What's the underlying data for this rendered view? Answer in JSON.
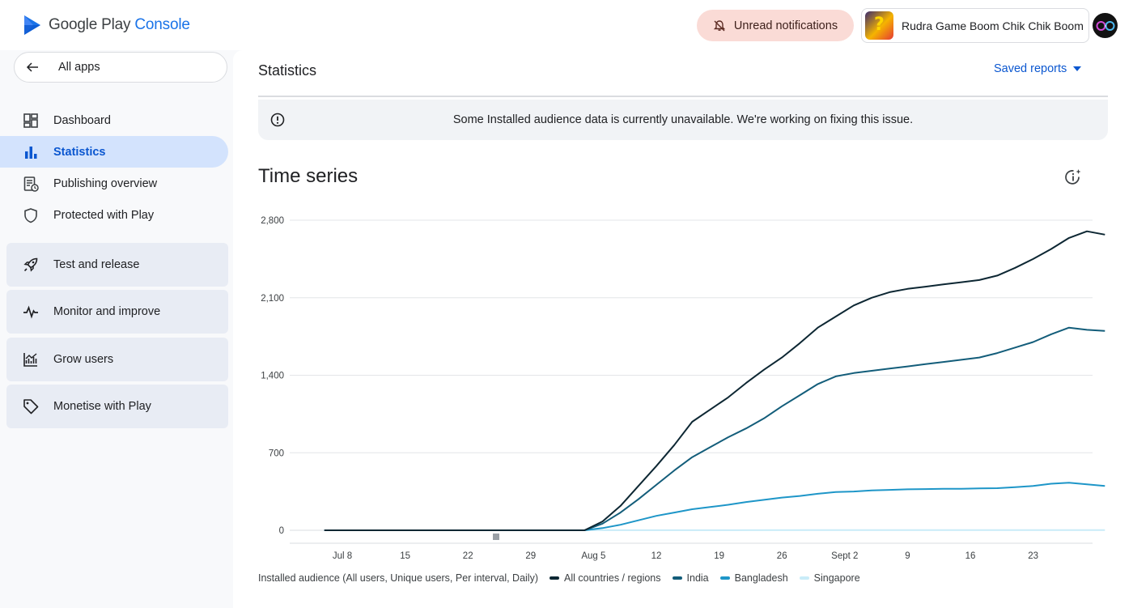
{
  "header": {
    "logo_text_a": "Google Play",
    "logo_text_b": "Console",
    "notifications_label": "Unread notifications",
    "app_name": "Rudra Game Boom Chik Chik Boom"
  },
  "sidebar": {
    "all_apps_label": "All apps",
    "items": [
      {
        "label": "Dashboard",
        "icon": "dashboard-icon",
        "active": false
      },
      {
        "label": "Statistics",
        "icon": "bar-chart-icon",
        "active": true
      },
      {
        "label": "Publishing overview",
        "icon": "publishing-icon",
        "active": false
      },
      {
        "label": "Protected with Play",
        "icon": "shield-icon",
        "active": false
      }
    ],
    "groups": [
      {
        "label": "Test and release",
        "icon": "rocket-icon"
      },
      {
        "label": "Monitor and improve",
        "icon": "pulse-icon"
      },
      {
        "label": "Grow users",
        "icon": "growth-chart-icon"
      },
      {
        "label": "Monetise with Play",
        "icon": "tag-icon"
      }
    ]
  },
  "main": {
    "title": "Statistics",
    "saved_reports_label": "Saved reports",
    "banner_text": "Some Installed audience data is currently unavailable. We're working on fixing this issue.",
    "section_title": "Time series"
  },
  "colors": {
    "accent": "#0b57d0",
    "series_all": "#0d2733",
    "series_india": "#135d7a",
    "series_bangladesh": "#1e96c8",
    "series_singapore": "#c9ecf8"
  },
  "chart_data": {
    "type": "line",
    "x_ticks": [
      "Jul 8",
      "15",
      "22",
      "29",
      "Aug 5",
      "12",
      "19",
      "26",
      "Sept 2",
      "9",
      "16",
      "23"
    ],
    "y_ticks": [
      "0",
      "700",
      "1,400",
      "2,100",
      "2,800"
    ],
    "ylim": [
      0,
      2800
    ],
    "x_range_days": [
      0,
      87
    ],
    "legend_title": "Installed audience (All users, Unique users, Per interval, Daily)",
    "series": [
      {
        "name": "All countries / regions",
        "color": "#0d2733",
        "points": [
          [
            0,
            0
          ],
          [
            28,
            0
          ],
          [
            29,
            0
          ],
          [
            31,
            80
          ],
          [
            33,
            220
          ],
          [
            35,
            400
          ],
          [
            37,
            580
          ],
          [
            39,
            770
          ],
          [
            41,
            980
          ],
          [
            43,
            1090
          ],
          [
            45,
            1200
          ],
          [
            47,
            1330
          ],
          [
            49,
            1450
          ],
          [
            51,
            1560
          ],
          [
            53,
            1690
          ],
          [
            55,
            1830
          ],
          [
            57,
            1930
          ],
          [
            59,
            2030
          ],
          [
            61,
            2100
          ],
          [
            63,
            2150
          ],
          [
            65,
            2180
          ],
          [
            67,
            2200
          ],
          [
            69,
            2220
          ],
          [
            71,
            2240
          ],
          [
            73,
            2260
          ],
          [
            75,
            2300
          ],
          [
            77,
            2370
          ],
          [
            79,
            2450
          ],
          [
            81,
            2540
          ],
          [
            83,
            2640
          ],
          [
            85,
            2700
          ],
          [
            87,
            2670
          ]
        ]
      },
      {
        "name": "India",
        "color": "#135d7a",
        "points": [
          [
            0,
            0
          ],
          [
            28,
            0
          ],
          [
            29,
            0
          ],
          [
            31,
            60
          ],
          [
            33,
            160
          ],
          [
            35,
            280
          ],
          [
            37,
            410
          ],
          [
            39,
            540
          ],
          [
            41,
            660
          ],
          [
            43,
            750
          ],
          [
            45,
            840
          ],
          [
            47,
            920
          ],
          [
            49,
            1010
          ],
          [
            51,
            1120
          ],
          [
            53,
            1220
          ],
          [
            55,
            1320
          ],
          [
            57,
            1390
          ],
          [
            59,
            1420
          ],
          [
            61,
            1440
          ],
          [
            63,
            1460
          ],
          [
            65,
            1480
          ],
          [
            67,
            1500
          ],
          [
            69,
            1520
          ],
          [
            71,
            1540
          ],
          [
            73,
            1560
          ],
          [
            75,
            1600
          ],
          [
            77,
            1650
          ],
          [
            79,
            1700
          ],
          [
            81,
            1770
          ],
          [
            83,
            1830
          ],
          [
            85,
            1810
          ],
          [
            87,
            1800
          ]
        ]
      },
      {
        "name": "Bangladesh",
        "color": "#1e96c8",
        "points": [
          [
            0,
            0
          ],
          [
            28,
            0
          ],
          [
            29,
            0
          ],
          [
            31,
            20
          ],
          [
            33,
            50
          ],
          [
            35,
            90
          ],
          [
            37,
            130
          ],
          [
            39,
            160
          ],
          [
            41,
            190
          ],
          [
            43,
            210
          ],
          [
            45,
            230
          ],
          [
            47,
            255
          ],
          [
            49,
            275
          ],
          [
            51,
            295
          ],
          [
            53,
            310
          ],
          [
            55,
            330
          ],
          [
            57,
            345
          ],
          [
            59,
            350
          ],
          [
            61,
            360
          ],
          [
            63,
            365
          ],
          [
            65,
            370
          ],
          [
            67,
            372
          ],
          [
            69,
            375
          ],
          [
            71,
            375
          ],
          [
            73,
            378
          ],
          [
            75,
            380
          ],
          [
            77,
            390
          ],
          [
            79,
            400
          ],
          [
            81,
            420
          ],
          [
            83,
            430
          ],
          [
            85,
            415
          ],
          [
            87,
            400
          ]
        ]
      },
      {
        "name": "Singapore",
        "color": "#c9ecf8",
        "points": [
          [
            0,
            0
          ],
          [
            87,
            2
          ]
        ]
      }
    ]
  }
}
